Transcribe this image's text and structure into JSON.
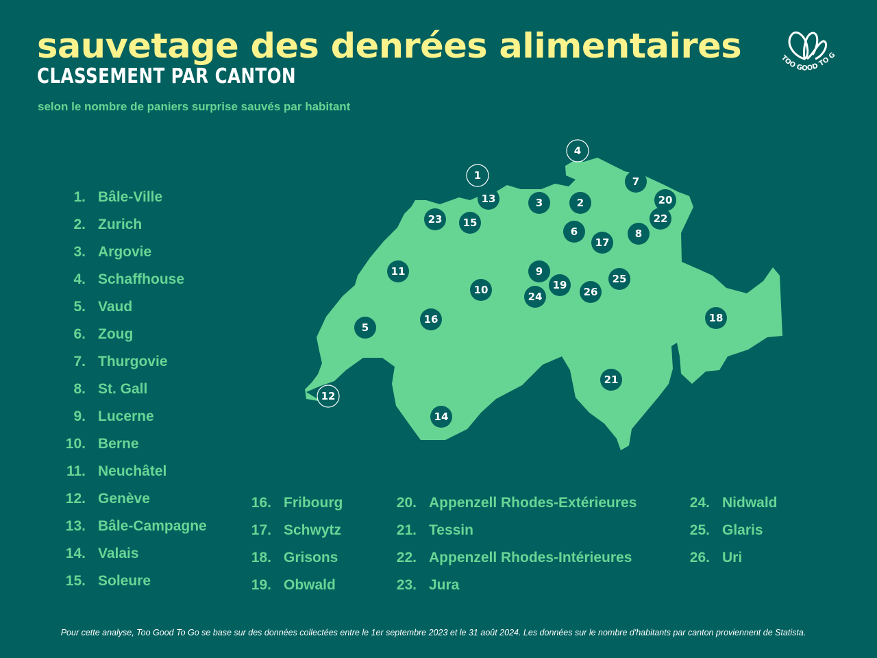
{
  "header": {
    "title": "sauvetage des denrées alimentaires",
    "subtitle": "CLASSEMENT PAR CANTON",
    "tagline": "selon le nombre de paniers surprise sauvés par habitant"
  },
  "logo": {
    "brand": "TOO GOOD TO GO",
    "icon": "heart-leaf-logo"
  },
  "colors": {
    "background": "#02605e",
    "map_fill": "#66d593",
    "title": "#fbf38c",
    "bubble": "#02605e",
    "text_green": "#68d695"
  },
  "ranking": [
    {
      "number": "1",
      "rank": "1.",
      "name": "Bâle-Ville",
      "highlighted": true
    },
    {
      "number": "2",
      "rank": "2.",
      "name": "Zurich"
    },
    {
      "number": "3",
      "rank": "3.",
      "name": "Argovie"
    },
    {
      "number": "4",
      "rank": "4.",
      "name": "Schaffhouse",
      "highlighted": true
    },
    {
      "number": "5",
      "rank": "5.",
      "name": "Vaud"
    },
    {
      "number": "6",
      "rank": "6.",
      "name": "Zoug"
    },
    {
      "number": "7",
      "rank": "7.",
      "name": "Thurgovie"
    },
    {
      "number": "8",
      "rank": "8.",
      "name": "St. Gall"
    },
    {
      "number": "9",
      "rank": "9.",
      "name": "Lucerne"
    },
    {
      "number": "10",
      "rank": "10.",
      "name": "Berne"
    },
    {
      "number": "11",
      "rank": "11.",
      "name": "Neuchâtel"
    },
    {
      "number": "12",
      "rank": "12.",
      "name": "Genève",
      "highlighted": true
    },
    {
      "number": "13",
      "rank": "13.",
      "name": "Bâle-Campagne"
    },
    {
      "number": "14",
      "rank": "14.",
      "name": "Valais"
    },
    {
      "number": "15",
      "rank": "15.",
      "name": "Soleure"
    },
    {
      "number": "16",
      "rank": "16.",
      "name": "Fribourg"
    },
    {
      "number": "17",
      "rank": "17.",
      "name": "Schwytz"
    },
    {
      "number": "18",
      "rank": "18.",
      "name": "Grisons"
    },
    {
      "number": "19",
      "rank": "19.",
      "name": "Obwald"
    },
    {
      "number": "20",
      "rank": "20.",
      "name": "Appenzell Rhodes-Extérieures"
    },
    {
      "number": "21",
      "rank": "21.",
      "name": "Tessin"
    },
    {
      "number": "22",
      "rank": "22.",
      "name": "Appenzell Rhodes-Intérieures"
    },
    {
      "number": "23",
      "rank": "23.",
      "name": "Jura"
    },
    {
      "number": "24",
      "rank": "24.",
      "name": "Nidwald"
    },
    {
      "number": "25",
      "rank": "25.",
      "name": "Glaris"
    },
    {
      "number": "26",
      "rank": "26.",
      "name": "Uri"
    }
  ],
  "footer": "Pour cette analyse, Too Good To Go se base sur des données collectées entre le 1er septembre 2023 et le 31 août 2024. Les données sur le nombre d'habitants par canton proviennent de Statista."
}
